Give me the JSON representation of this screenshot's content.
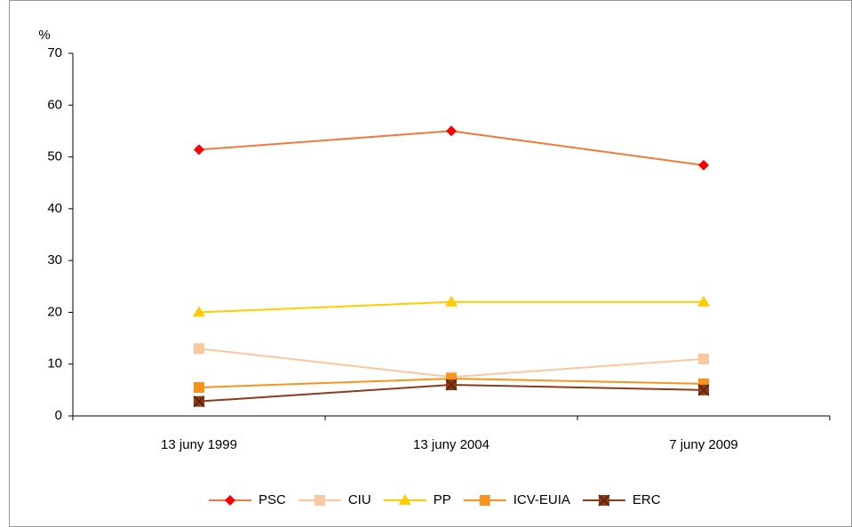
{
  "chart_data": {
    "type": "line",
    "ylabel": "%",
    "categories": [
      "13 juny 1999",
      "13 juny 2004",
      "7 juny 2009"
    ],
    "ylim": [
      0,
      70
    ],
    "yticks": [
      0,
      10,
      20,
      30,
      40,
      50,
      60,
      70
    ],
    "legend": "bottom",
    "series": [
      {
        "name": "PSC",
        "color": "#f07a3c",
        "marker_color": "#ff0000",
        "marker": "diamond",
        "values": [
          51.4,
          55,
          48.4
        ]
      },
      {
        "name": "CIU",
        "color": "#fac89e",
        "marker_color": "#fac89e",
        "marker": "square",
        "values": [
          13,
          7.5,
          11
        ]
      },
      {
        "name": "PP",
        "color": "#ffcc00",
        "marker_color": "#ffcc00",
        "marker": "triangle",
        "values": [
          20,
          22,
          22
        ]
      },
      {
        "name": "ICV-EUIA",
        "color": "#f7941d",
        "marker_color": "#f7941d",
        "marker": "square",
        "values": [
          5.5,
          7.2,
          6.2
        ]
      },
      {
        "name": "ERC",
        "color": "#8b3a1a",
        "marker_color": "#8b3a1a",
        "marker": "xsquare",
        "values": [
          2.8,
          6,
          5
        ]
      }
    ]
  }
}
